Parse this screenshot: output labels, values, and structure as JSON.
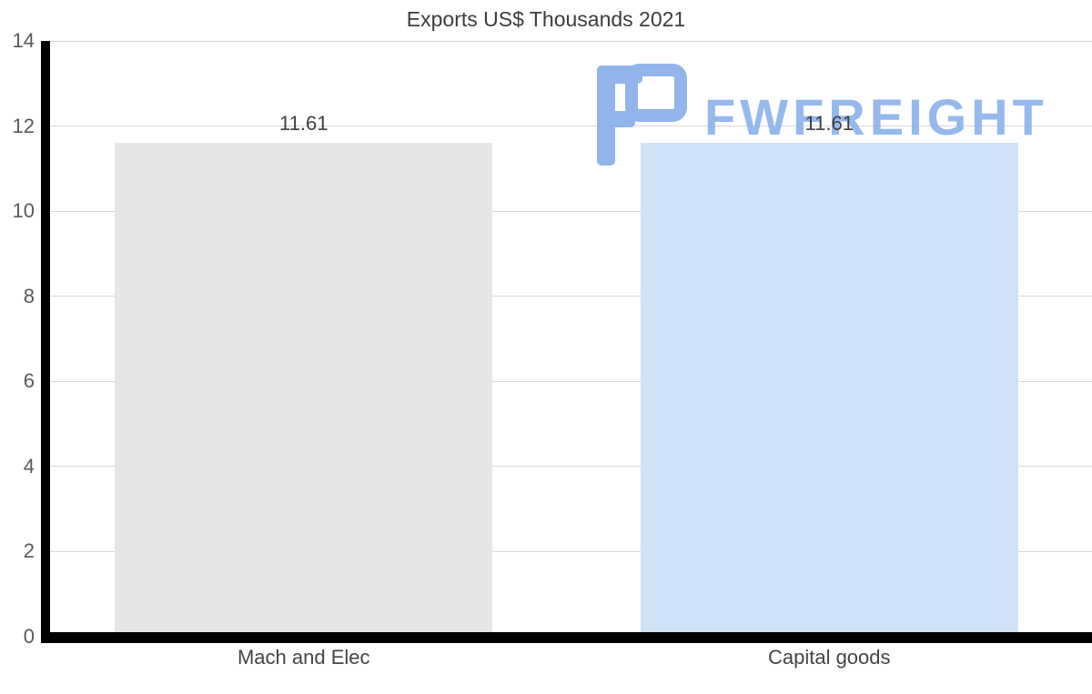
{
  "title": "Exports US$ Thousands 2021",
  "watermark": {
    "text": "FWFREIGHT",
    "color": "#8ab2ec",
    "icon": "fwfreight-logo-icon"
  },
  "chart_data": {
    "type": "bar",
    "title": "Exports US$ Thousands 2021",
    "categories": [
      "Mach and Elec",
      "Capital goods"
    ],
    "values": [
      11.61,
      11.61
    ],
    "value_labels": [
      "11.61",
      "11.61"
    ],
    "bar_colors": [
      "#e6e6e6",
      "#cfe2f7"
    ],
    "xlabel": "",
    "ylabel": "",
    "ylim": [
      0,
      14
    ],
    "yticks": [
      0,
      2,
      4,
      6,
      8,
      10,
      12,
      14
    ],
    "grid": "horizontal",
    "gridline_color": "#d9d9d9",
    "axis_color": "#000000",
    "legend": "none",
    "background": "#ffffff"
  }
}
